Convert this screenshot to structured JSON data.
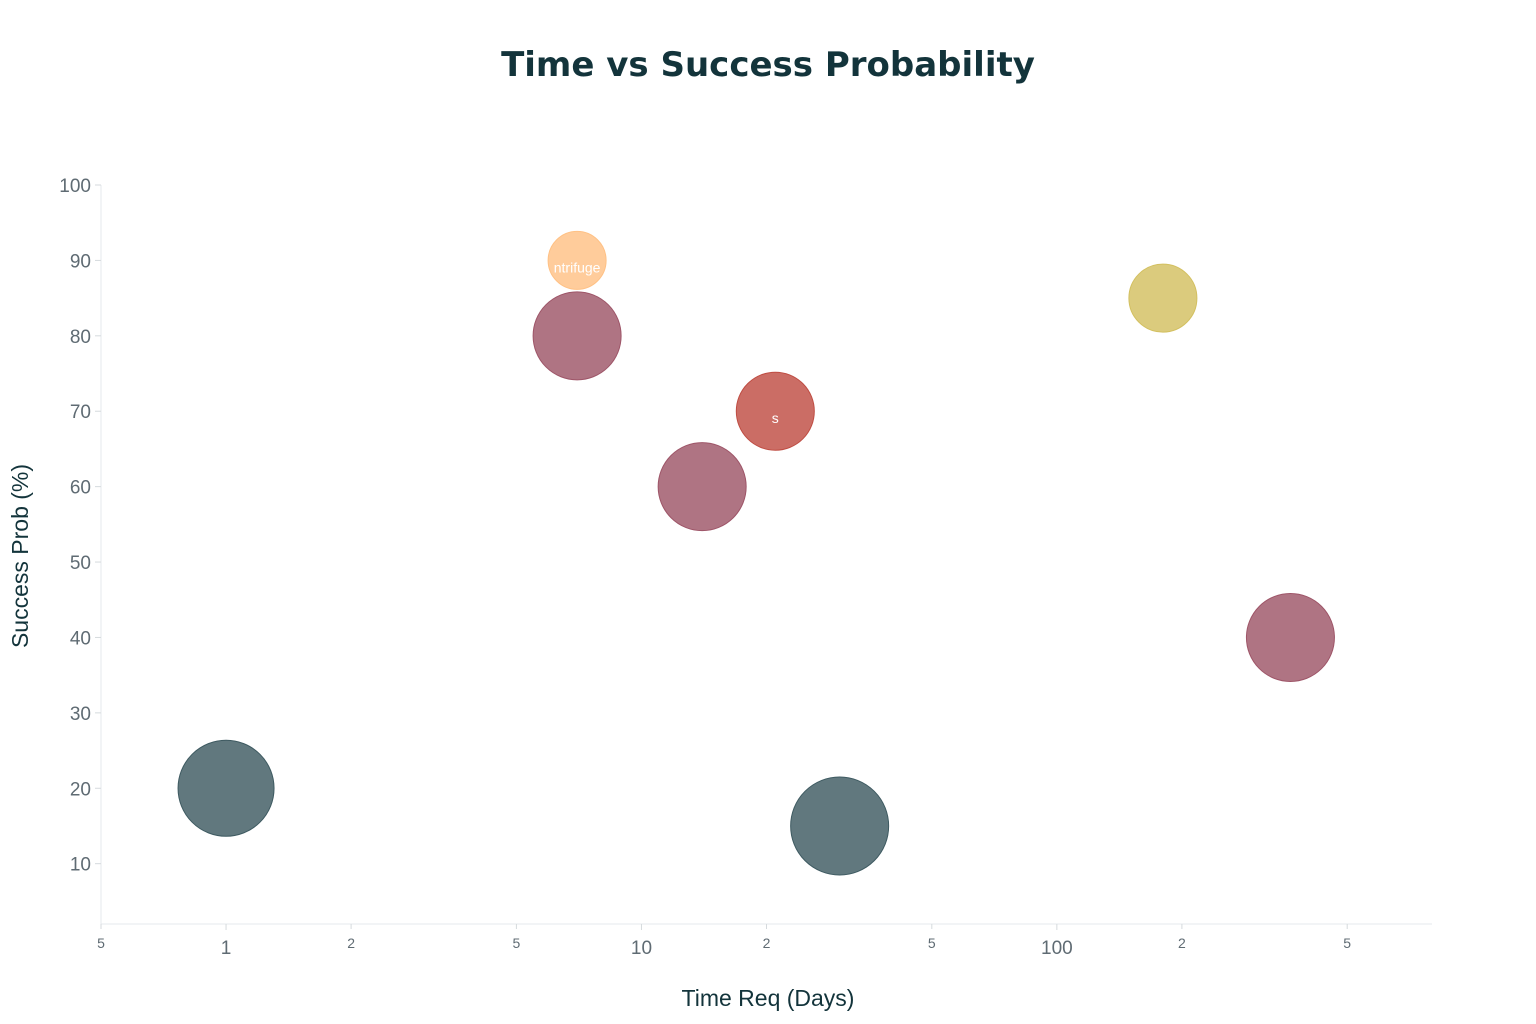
{
  "chart_data": {
    "type": "scatter",
    "title": "Time vs Success Probability",
    "xlabel": "Time Req (Days)",
    "ylabel": "Success Prob (%)",
    "x_scale": "log",
    "xlim": [
      0.5,
      800
    ],
    "ylim": [
      2,
      100
    ],
    "grid": false,
    "legend": "none",
    "y_ticks": [
      "100",
      "90",
      "80",
      "70",
      "60",
      "50",
      "40",
      "30",
      "20",
      "10"
    ],
    "x_ticks_major": [
      "1",
      "10",
      "100"
    ],
    "x_ticks_minor": [
      "5",
      "2",
      "5",
      "2",
      "5",
      "2",
      "5"
    ],
    "points": [
      {
        "x": 1,
        "y": 20,
        "size": 48,
        "color": "#3e5a61",
        "label": ""
      },
      {
        "x": 7,
        "y": 90,
        "size": 29,
        "color": "#ffc185",
        "label": "ntrifuge"
      },
      {
        "x": 7,
        "y": 80,
        "size": 44,
        "color": "#9e5568",
        "label": ""
      },
      {
        "x": 14,
        "y": 60,
        "size": 44,
        "color": "#9e5568",
        "label": ""
      },
      {
        "x": 21,
        "y": 70,
        "size": 39,
        "color": "#bf4d43",
        "label": "s"
      },
      {
        "x": 30,
        "y": 15,
        "size": 49,
        "color": "#3e5a61",
        "label": ""
      },
      {
        "x": 180,
        "y": 85,
        "size": 34,
        "color": "#d3c060",
        "label": ""
      },
      {
        "x": 365,
        "y": 40,
        "size": 44,
        "color": "#9e5568",
        "label": ""
      }
    ]
  }
}
